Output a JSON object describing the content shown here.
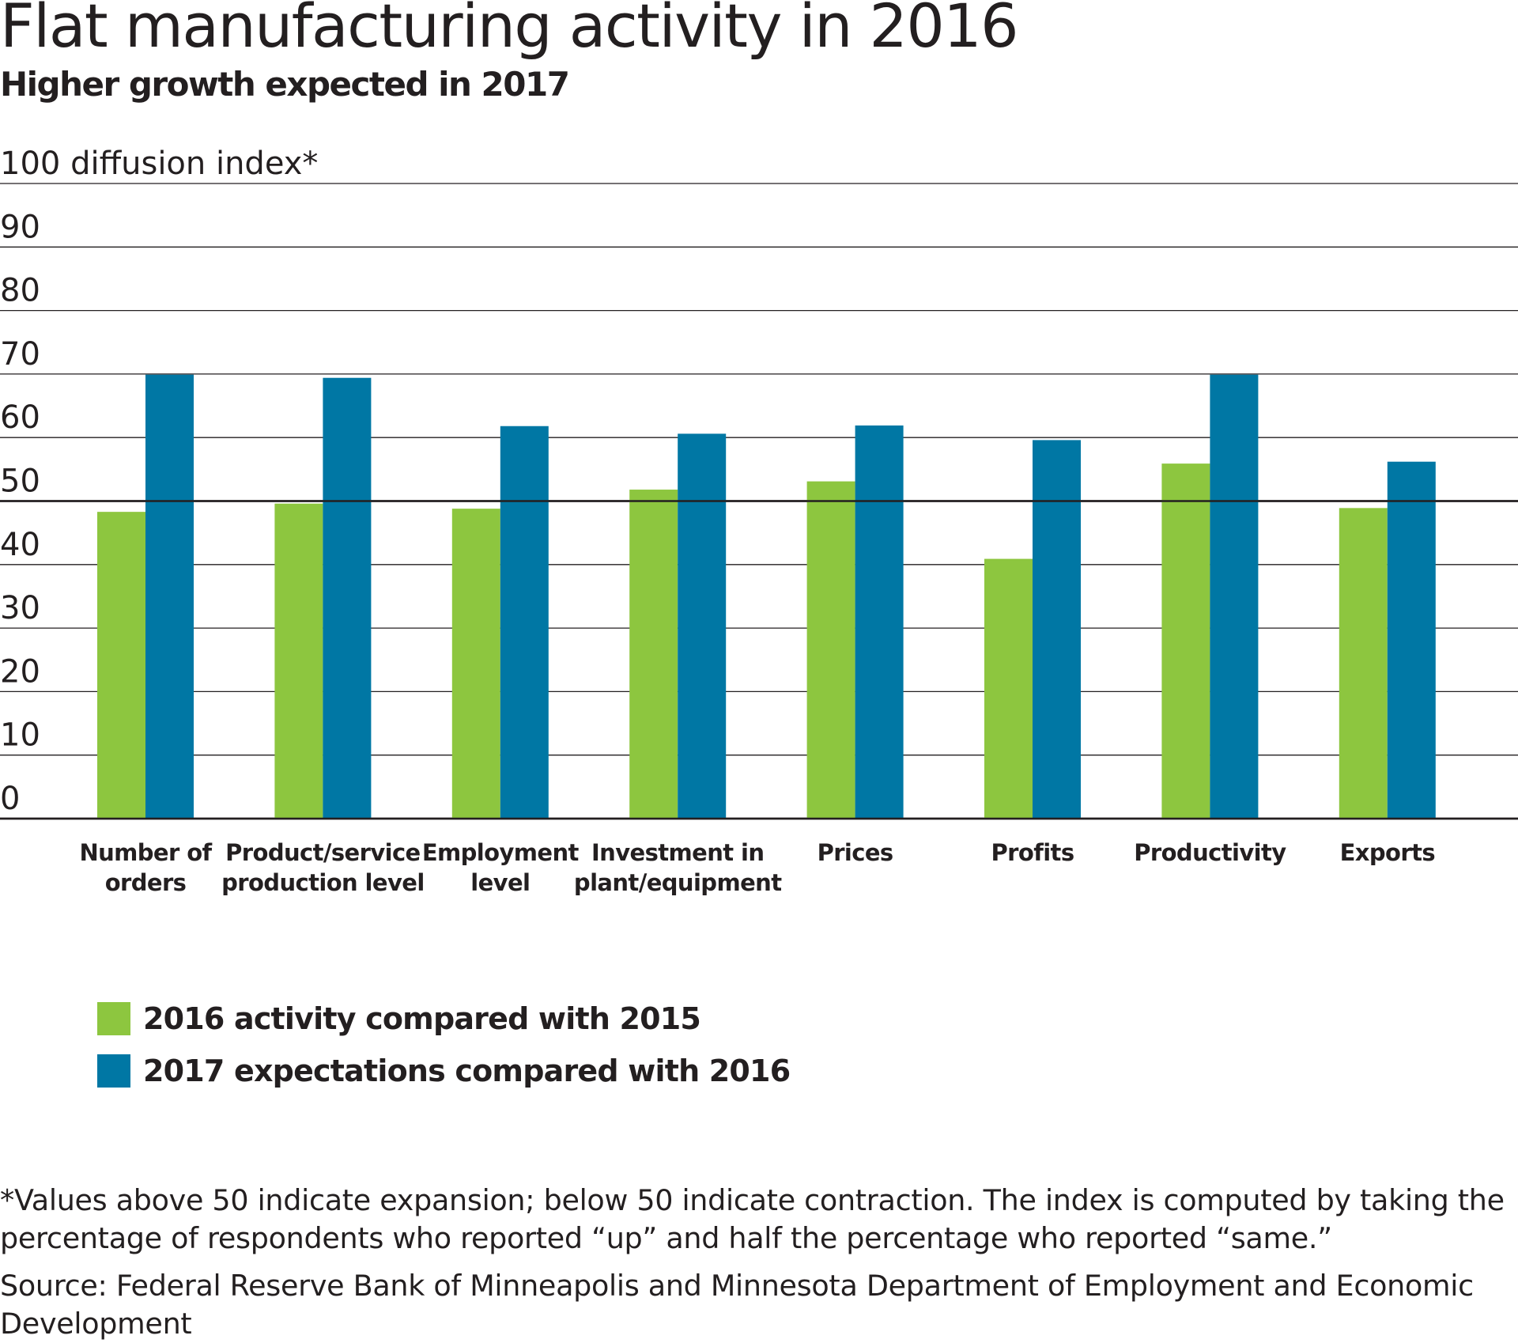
{
  "title": "Flat manufacturing activity in 2016",
  "subtitle": "Higher growth expected in 2017",
  "footnote": "*Values above 50 indicate expansion; below 50 indicate contraction. The index is computed by taking the percentage of respondents who reported “up” and half the percentage who reported “same.”",
  "source": "Source: Federal Reserve Bank of Minneapolis and Minnesota Department of Employment and Economic Development",
  "colors": {
    "series_2016": "#8dc63f",
    "series_2017": "#0077a4",
    "grid": "#231f20"
  },
  "chart_data": {
    "type": "bar",
    "title": "Flat manufacturing activity in 2016",
    "subtitle": "Higher growth expected in 2017",
    "ylabel": "diffusion index*",
    "ylim": [
      0,
      100
    ],
    "yticks": [
      0,
      10,
      20,
      30,
      40,
      50,
      60,
      70,
      80,
      90,
      100
    ],
    "top_tick_label": "100 diffusion index*",
    "reference_line": 50,
    "grid": true,
    "legend_position": "bottom-left",
    "categories": [
      [
        "Number of",
        "orders"
      ],
      [
        "Product/service",
        "production level"
      ],
      [
        "Employment",
        "level"
      ],
      [
        "Investment in",
        "plant/equipment"
      ],
      [
        "Prices"
      ],
      [
        "Profits"
      ],
      [
        "Productivity"
      ],
      [
        "Exports"
      ]
    ],
    "series": [
      {
        "name": "2016 activity compared with 2015",
        "color": "#8dc63f",
        "values": [
          48.3,
          49.6,
          48.8,
          51.8,
          53.1,
          40.9,
          55.9,
          48.9
        ]
      },
      {
        "name": "2017 expectations compared with 2016",
        "color": "#0077a4",
        "values": [
          69.9,
          69.4,
          61.8,
          60.6,
          61.9,
          59.6,
          69.9,
          56.2
        ]
      }
    ]
  }
}
